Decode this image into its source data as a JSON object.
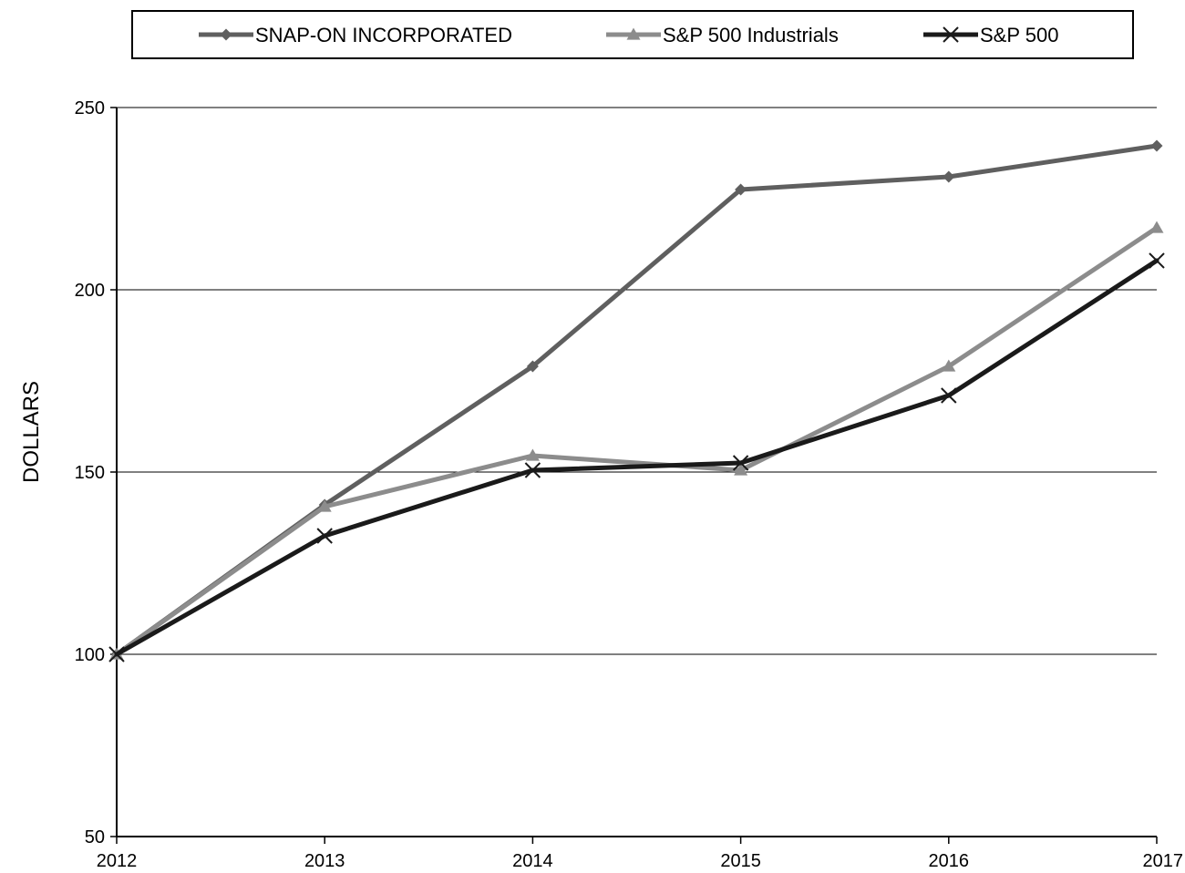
{
  "chart_data": {
    "type": "line",
    "title": "",
    "xlabel": "",
    "ylabel": "DOLLARS",
    "x": [
      "2012",
      "2013",
      "2014",
      "2015",
      "2016",
      "2017"
    ],
    "ylim": [
      50,
      250
    ],
    "yticks": [
      50,
      100,
      150,
      200,
      250
    ],
    "grid": true,
    "legend_position": "top",
    "series": [
      {
        "name": "SNAP-ON INCORPORATED",
        "marker": "diamond",
        "color": "#5f5f5f",
        "values": [
          100,
          141,
          179,
          227.5,
          231,
          239.5
        ]
      },
      {
        "name": "S&P 500 Industrials",
        "marker": "triangle",
        "color": "#8c8c8c",
        "values": [
          100,
          140.5,
          154.5,
          150.5,
          179,
          217
        ]
      },
      {
        "name": "S&P 500",
        "marker": "x",
        "color": "#1a1a1a",
        "values": [
          100,
          132.5,
          150.5,
          152.5,
          171,
          208
        ]
      }
    ]
  }
}
